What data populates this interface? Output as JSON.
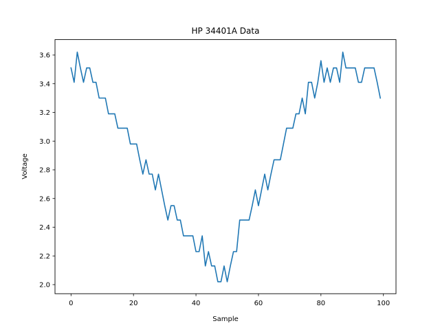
{
  "chart_data": {
    "type": "line",
    "title": "HP 34401A Data",
    "xlabel": "Sample",
    "ylabel": "Voltage",
    "xlim": [
      -5,
      104
    ],
    "ylim": [
      1.94,
      3.7
    ],
    "xticks": [
      0,
      20,
      40,
      60,
      80,
      100
    ],
    "xtick_labels": [
      "0",
      "20",
      "40",
      "60",
      "80",
      "100"
    ],
    "yticks": [
      2.0,
      2.2,
      2.4,
      2.6,
      2.8,
      3.0,
      3.2,
      3.4,
      3.6
    ],
    "ytick_labels": [
      "2.0",
      "2.2",
      "2.4",
      "2.6",
      "2.8",
      "3.0",
      "3.2",
      "3.4",
      "3.6"
    ],
    "grid": false,
    "legend": null,
    "series": [
      {
        "name": "Voltage",
        "color": "#1f77b4",
        "x": [
          0,
          1,
          2,
          3,
          4,
          5,
          6,
          7,
          8,
          9,
          10,
          11,
          12,
          13,
          14,
          15,
          16,
          17,
          18,
          19,
          20,
          21,
          22,
          23,
          24,
          25,
          26,
          27,
          28,
          29,
          30,
          31,
          32,
          33,
          34,
          35,
          36,
          37,
          38,
          39,
          40,
          41,
          42,
          43,
          44,
          45,
          46,
          47,
          48,
          49,
          50,
          51,
          52,
          53,
          54,
          55,
          56,
          57,
          58,
          59,
          60,
          61,
          62,
          63,
          64,
          65,
          66,
          67,
          68,
          69,
          70,
          71,
          72,
          73,
          74,
          75,
          76,
          77,
          78,
          79,
          80,
          81,
          82,
          83,
          84,
          85,
          86,
          87,
          88,
          89,
          90,
          91,
          92,
          93,
          94,
          95,
          96,
          97,
          98,
          99
        ],
        "values": [
          3.51,
          3.41,
          3.62,
          3.51,
          3.41,
          3.51,
          3.51,
          3.41,
          3.41,
          3.3,
          3.3,
          3.3,
          3.19,
          3.19,
          3.19,
          3.09,
          3.09,
          3.09,
          3.09,
          2.98,
          2.98,
          2.98,
          2.87,
          2.77,
          2.87,
          2.77,
          2.77,
          2.66,
          2.77,
          2.66,
          2.55,
          2.45,
          2.55,
          2.55,
          2.45,
          2.45,
          2.34,
          2.34,
          2.34,
          2.34,
          2.23,
          2.23,
          2.34,
          2.13,
          2.23,
          2.13,
          2.13,
          2.02,
          2.02,
          2.13,
          2.02,
          2.13,
          2.23,
          2.23,
          2.45,
          2.45,
          2.45,
          2.45,
          2.55,
          2.66,
          2.55,
          2.66,
          2.77,
          2.66,
          2.77,
          2.87,
          2.87,
          2.87,
          2.98,
          3.09,
          3.09,
          3.09,
          3.19,
          3.19,
          3.3,
          3.19,
          3.41,
          3.41,
          3.3,
          3.41,
          3.56,
          3.41,
          3.51,
          3.41,
          3.51,
          3.51,
          3.41,
          3.62,
          3.51,
          3.51,
          3.51,
          3.51,
          3.41,
          3.41,
          3.51,
          3.51,
          3.51,
          3.51,
          3.41,
          3.3
        ]
      }
    ]
  }
}
